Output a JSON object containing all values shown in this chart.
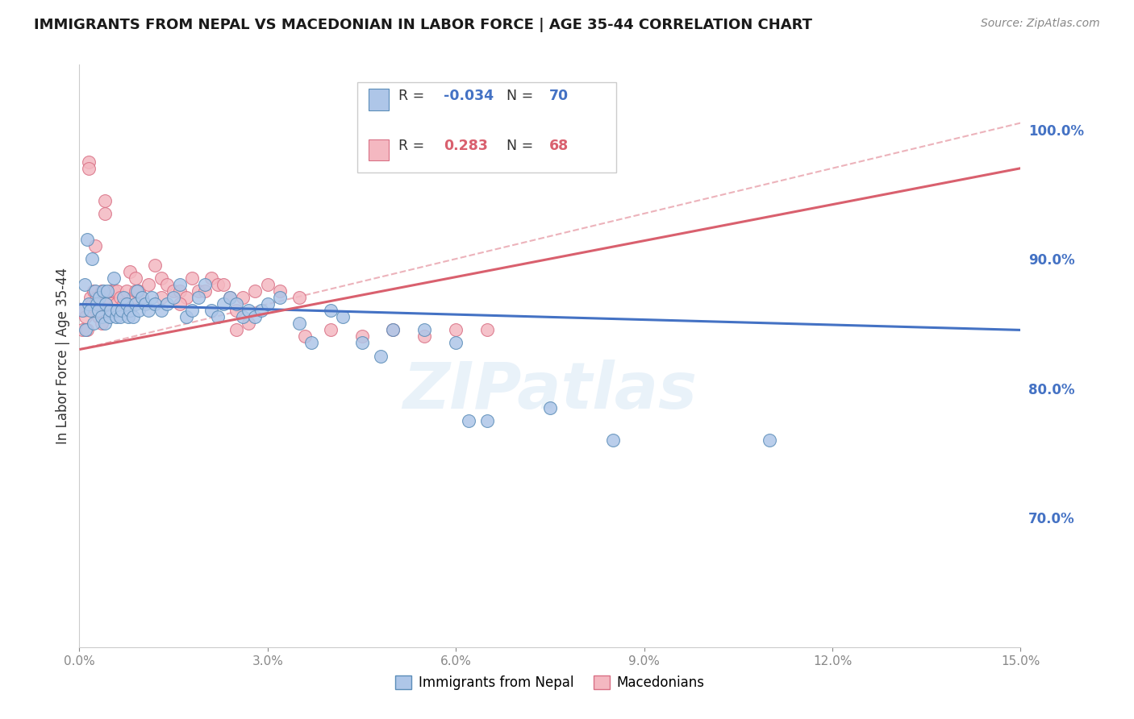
{
  "title": "IMMIGRANTS FROM NEPAL VS MACEDONIAN IN LABOR FORCE | AGE 35-44 CORRELATION CHART",
  "source": "Source: ZipAtlas.com",
  "ylabel_label": "In Labor Force | Age 35-44",
  "yticks": [
    70.0,
    80.0,
    90.0,
    100.0
  ],
  "xticks": [
    0.0,
    3.0,
    6.0,
    9.0,
    12.0,
    15.0
  ],
  "xlim": [
    0.0,
    15.0
  ],
  "ylim": [
    60.0,
    105.0
  ],
  "nepal_color": "#aec6e8",
  "nepal_color_dark": "#5b8db8",
  "macedonian_color": "#f4b8c1",
  "macedonian_color_dark": "#d97085",
  "nepal_R": -0.034,
  "nepal_N": 70,
  "macedonian_R": 0.283,
  "macedonian_N": 68,
  "watermark": "ZIPatlas",
  "nepal_trend_x0": 0.0,
  "nepal_trend_y0": 86.5,
  "nepal_trend_x1": 15.0,
  "nepal_trend_y1": 84.5,
  "nepal_trend_color": "#4472c4",
  "mac_trend_x0": 0.0,
  "mac_trend_y0": 83.0,
  "mac_trend_x1": 15.0,
  "mac_trend_y1": 97.0,
  "mac_trend_color": "#d9606e",
  "mac_dash_x0": 0.0,
  "mac_dash_y0": 83.0,
  "mac_dash_x1": 15.0,
  "mac_dash_y1": 100.5,
  "mac_dash_color": "#e8a0aa",
  "nepal_points_x": [
    0.05,
    0.08,
    0.1,
    0.12,
    0.15,
    0.18,
    0.2,
    0.22,
    0.25,
    0.28,
    0.3,
    0.32,
    0.35,
    0.38,
    0.4,
    0.42,
    0.45,
    0.48,
    0.5,
    0.55,
    0.58,
    0.6,
    0.65,
    0.68,
    0.7,
    0.75,
    0.78,
    0.8,
    0.85,
    0.9,
    0.92,
    0.95,
    1.0,
    1.05,
    1.1,
    1.15,
    1.2,
    1.3,
    1.4,
    1.5,
    1.6,
    1.7,
    1.8,
    1.9,
    2.0,
    2.1,
    2.2,
    2.3,
    2.4,
    2.5,
    2.6,
    2.7,
    2.8,
    2.9,
    3.0,
    3.2,
    3.5,
    3.7,
    4.0,
    4.2,
    4.5,
    5.0,
    5.5,
    6.0,
    6.5,
    7.5,
    8.5,
    11.0,
    4.8,
    6.2
  ],
  "nepal_points_y": [
    86.0,
    88.0,
    84.5,
    91.5,
    86.5,
    86.0,
    90.0,
    85.0,
    87.5,
    86.5,
    86.0,
    87.0,
    85.5,
    87.5,
    85.0,
    86.5,
    87.5,
    85.5,
    86.0,
    88.5,
    85.5,
    86.0,
    85.5,
    86.0,
    87.0,
    86.5,
    85.5,
    86.0,
    85.5,
    86.5,
    87.5,
    86.0,
    87.0,
    86.5,
    86.0,
    87.0,
    86.5,
    86.0,
    86.5,
    87.0,
    88.0,
    85.5,
    86.0,
    87.0,
    88.0,
    86.0,
    85.5,
    86.5,
    87.0,
    86.5,
    85.5,
    86.0,
    85.5,
    86.0,
    86.5,
    87.0,
    85.0,
    83.5,
    86.0,
    85.5,
    83.5,
    84.5,
    84.5,
    83.5,
    77.5,
    78.5,
    76.0,
    76.0,
    82.5,
    77.5
  ],
  "macedonian_points_x": [
    0.05,
    0.08,
    0.1,
    0.12,
    0.15,
    0.18,
    0.2,
    0.22,
    0.25,
    0.28,
    0.3,
    0.32,
    0.35,
    0.38,
    0.4,
    0.42,
    0.45,
    0.48,
    0.5,
    0.55,
    0.58,
    0.6,
    0.65,
    0.7,
    0.75,
    0.8,
    0.85,
    0.9,
    0.95,
    1.0,
    1.1,
    1.2,
    1.3,
    1.4,
    1.5,
    1.6,
    1.7,
    1.8,
    1.9,
    2.0,
    2.1,
    2.2,
    2.3,
    2.4,
    2.5,
    2.6,
    2.8,
    3.0,
    3.2,
    3.5,
    4.0,
    4.5,
    5.0,
    5.5,
    6.0,
    6.5,
    0.15,
    0.4,
    0.7,
    2.5,
    3.6,
    1.3,
    0.25,
    0.9,
    1.6,
    2.7,
    0.6,
    0.35
  ],
  "macedonian_points_y": [
    84.5,
    86.0,
    85.5,
    84.5,
    97.5,
    87.0,
    86.5,
    87.5,
    86.5,
    87.0,
    85.5,
    86.0,
    87.5,
    86.5,
    94.5,
    86.5,
    87.0,
    86.0,
    87.5,
    87.5,
    86.5,
    87.5,
    87.0,
    86.0,
    87.5,
    89.0,
    87.0,
    88.5,
    87.5,
    87.0,
    88.0,
    89.5,
    88.5,
    88.0,
    87.5,
    87.5,
    87.0,
    88.5,
    87.5,
    87.5,
    88.5,
    88.0,
    88.0,
    87.0,
    86.0,
    87.0,
    87.5,
    88.0,
    87.5,
    87.0,
    84.5,
    84.0,
    84.5,
    84.0,
    84.5,
    84.5,
    97.0,
    93.5,
    86.5,
    84.5,
    84.0,
    87.0,
    91.0,
    87.5,
    86.5,
    85.0,
    86.0,
    85.0
  ],
  "grid_color": "#cccccc",
  "spine_color": "#cccccc",
  "tick_color": "#888888",
  "right_tick_color": "#4472c4"
}
